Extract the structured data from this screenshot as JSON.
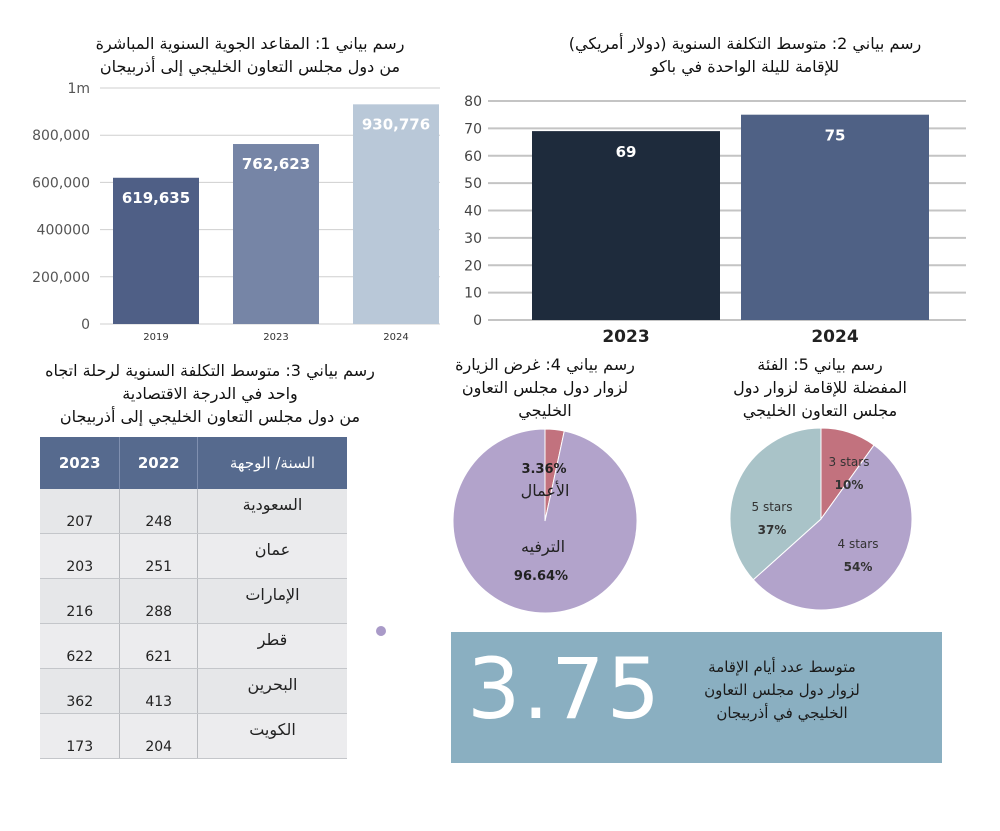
{
  "chart_data": [
    {
      "type": "bar",
      "title": "رسم بياني 1: المقاعد الجوية السنوية المباشرة من دول مجلس التعاون الخليجي إلى أذربيجان",
      "title_lines": [
        "رسم بياني 1: المقاعد الجوية السنوية المباشرة",
        "من دول مجلس التعاون الخليجي إلى أذربيجان"
      ],
      "categories": [
        "2019",
        "2023",
        "2024"
      ],
      "values": [
        619635,
        762623,
        930776
      ],
      "value_labels": [
        "619,635",
        "762,623",
        "930,776"
      ],
      "colors": [
        "#4f5f86",
        "#7685a6",
        "#b9c8d8"
      ],
      "ylim": [
        0,
        1000000
      ],
      "yticks": [
        0,
        200000,
        400000,
        600000,
        800000,
        1000000
      ],
      "ytick_labels": [
        "0",
        "200,000",
        "400000",
        "600,000",
        "800,000",
        "1m"
      ],
      "grid": true
    },
    {
      "type": "bar",
      "title": "رسم بياني 2: متوسط التكلفة السنوية (دولار أمريكي) للإقامة لليلة الواحدة في باكو",
      "title_lines": [
        "رسم بياني 2: متوسط التكلفة السنوية (دولار أمريكي)",
        "للإقامة لليلة الواحدة في باكو"
      ],
      "categories": [
        "2023",
        "2024"
      ],
      "values": [
        69,
        75
      ],
      "value_labels": [
        "69",
        "75"
      ],
      "colors": [
        "#1e2b3c",
        "#4f6185"
      ],
      "ylim": [
        0,
        80
      ],
      "yticks": [
        0,
        10,
        20,
        30,
        40,
        50,
        60,
        70,
        80
      ],
      "ytick_labels": [
        "0",
        "10",
        "20",
        "30",
        "40",
        "50",
        "60",
        "70",
        "80"
      ],
      "grid": true
    },
    {
      "type": "table",
      "title": "رسم بياني 3: متوسط التكلفة السنوية لرحلة اتجاه واحد في الدرجة الاقتصادية من دول مجلس التعاون الخليجي إلى أذربيجان",
      "title_lines": [
        "رسم بياني 3: متوسط التكلفة السنوية  لرحلة اتجاه",
        "واحد في الدرجة الاقتصادية",
        "من دول مجلس التعاون الخليجي إلى أذربيجان"
      ],
      "columns": [
        "2023",
        "2022",
        "السنة/ الوجهة"
      ],
      "rows": [
        {
          "dest": "السعودية",
          "y2022": "248",
          "y2023": "207"
        },
        {
          "dest": "عمان",
          "y2022": "251",
          "y2023": "203"
        },
        {
          "dest": "الإمارات",
          "y2022": "288",
          "y2023": "216"
        },
        {
          "dest": "قطر",
          "y2022": "621",
          "y2023": "622"
        },
        {
          "dest": "البحرين",
          "y2022": "413",
          "y2023": "362"
        },
        {
          "dest": "الكويت",
          "y2022": "204",
          "y2023": "173"
        }
      ]
    },
    {
      "type": "pie",
      "title": "رسم بياني 4: غرض الزيارة لزوار دول مجلس التعاون الخليجي",
      "title_lines": [
        "رسم بياني 4: غرض الزيارة",
        "لزوار دول مجلس التعاون",
        "الخليجي"
      ],
      "slices": [
        {
          "label": "الأعمال",
          "value": 3.36,
          "pct": "3.36%",
          "color": "#c2727e"
        },
        {
          "label": "الترفيه",
          "value": 96.64,
          "pct": "96.64%",
          "color": "#b2a3cb"
        }
      ]
    },
    {
      "type": "pie",
      "title": "رسم بياني 5: الفئة المفضلة للإقامة لزوار دول مجلس التعاون الخليجي",
      "title_lines": [
        "رسم بياني 5: الفئة",
        "المفضلة للإقامة لزوار دول",
        "مجلس التعاون الخليجي"
      ],
      "slices": [
        {
          "label": "3 stars",
          "value": 10,
          "pct": "10%",
          "color": "#c2727e"
        },
        {
          "label": "4 stars",
          "value": 54,
          "pct": "54%",
          "color": "#b2a3cb"
        },
        {
          "label": "5 stars",
          "value": 37,
          "pct": "37%",
          "color": "#a9c3c8"
        }
      ]
    }
  ],
  "kpi": {
    "value": "3.75",
    "label_lines": [
      "متوسط عدد أيام الإقامة",
      "لزوار دول مجلس التعاون",
      "الخليجي في أذربيجان"
    ],
    "background": "#8aafc1"
  }
}
